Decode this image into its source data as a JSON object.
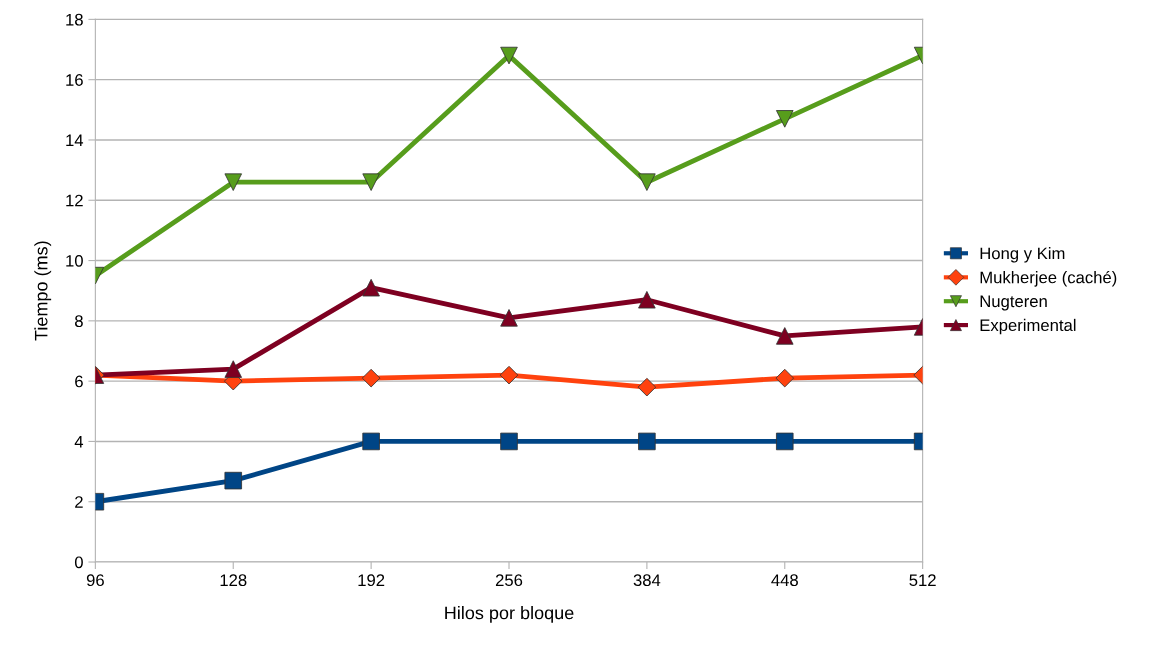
{
  "chart_data": {
    "type": "line",
    "xlabel": "Hilos por bloque",
    "ylabel": "Tiempo (ms)",
    "categories": [
      "96",
      "128",
      "192",
      "256",
      "384",
      "448",
      "512"
    ],
    "ylim": [
      0,
      18
    ],
    "yticks": [
      0,
      2,
      4,
      6,
      8,
      10,
      12,
      14,
      16,
      18
    ],
    "grid": "y",
    "legend": "right",
    "series": [
      {
        "name": "Hong y Kim",
        "color": "#004586",
        "marker": "square",
        "values": [
          2,
          2.7,
          4,
          4,
          4,
          4,
          4
        ]
      },
      {
        "name": "Mukherjee (caché)",
        "color": "#ff420e",
        "marker": "diamond",
        "values": [
          6.2,
          6.0,
          6.1,
          6.2,
          5.8,
          6.1,
          6.2
        ]
      },
      {
        "name": "Nugteren",
        "color": "#579d1c",
        "marker": "triangle_down",
        "values": [
          9.5,
          12.6,
          12.6,
          16.8,
          12.6,
          14.7,
          16.8
        ]
      },
      {
        "name": "Experimental",
        "color": "#7e0021",
        "marker": "triangle",
        "values": [
          6.2,
          6.4,
          9.1,
          8.1,
          8.7,
          7.5,
          7.8
        ]
      }
    ]
  }
}
